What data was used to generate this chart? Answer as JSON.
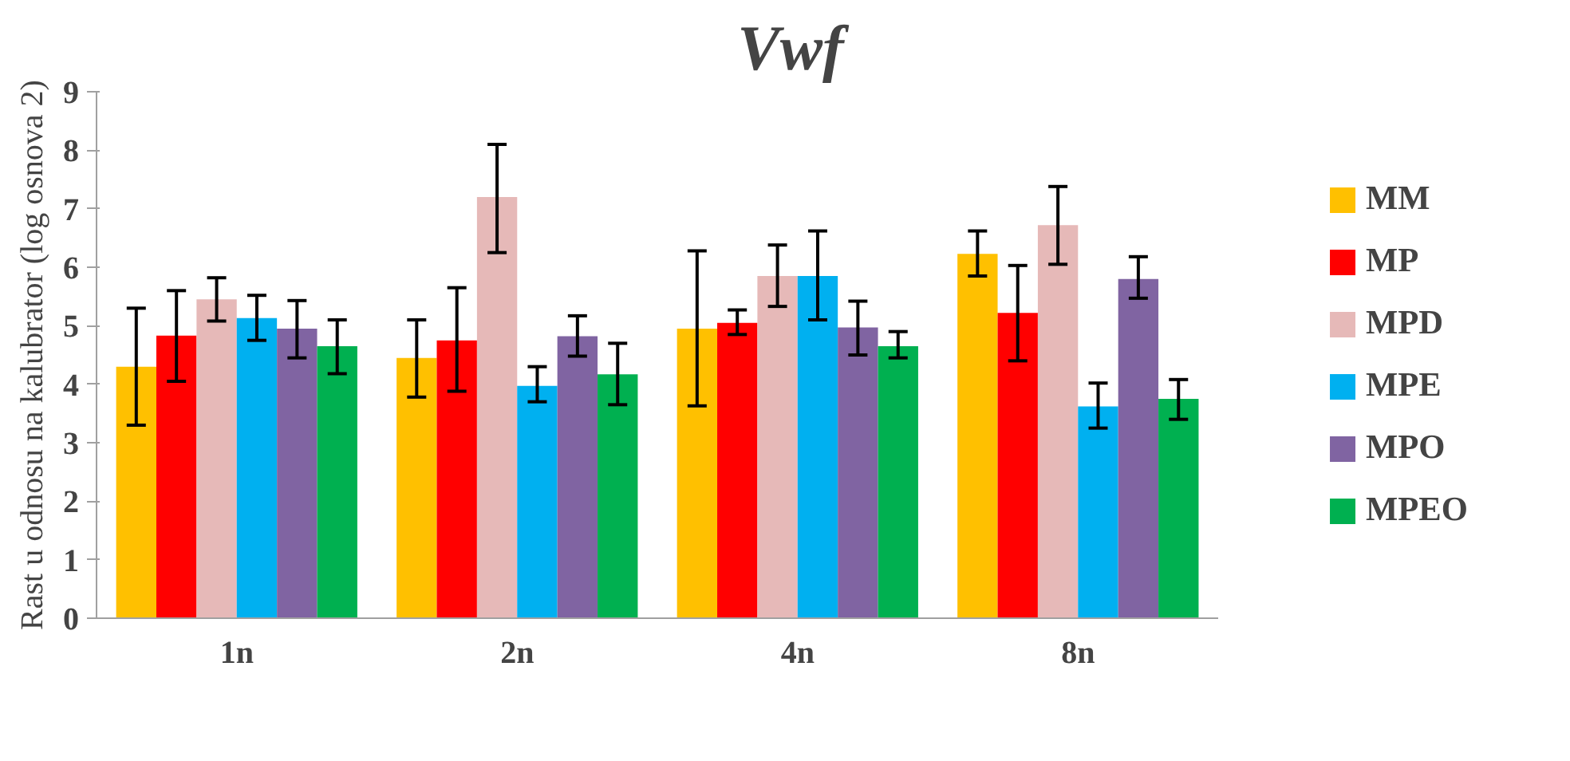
{
  "chart_data": {
    "type": "bar",
    "title": "Vwf",
    "ylabel": "Rast u odnosu na kalubrator (log osnova 2)",
    "categories": [
      "1n",
      "2n",
      "4n",
      "8n"
    ],
    "ylim": [
      0,
      9
    ],
    "yticks": [
      0,
      1,
      2,
      3,
      4,
      5,
      6,
      7,
      8,
      9
    ],
    "grid": false,
    "legend": "right",
    "series": [
      {
        "name": "MM",
        "color": "#ffc000",
        "values": [
          4.3,
          4.45,
          4.95,
          6.23
        ],
        "errors": [
          [
            3.3,
            5.3
          ],
          [
            3.78,
            5.1
          ],
          [
            3.63,
            6.28
          ],
          [
            5.85,
            6.62
          ]
        ]
      },
      {
        "name": "MP",
        "color": "#ff0000",
        "values": [
          4.83,
          4.75,
          5.05,
          5.22
        ],
        "errors": [
          [
            4.05,
            5.6
          ],
          [
            3.88,
            5.65
          ],
          [
            4.85,
            5.27
          ],
          [
            4.4,
            6.03
          ]
        ]
      },
      {
        "name": "MPD",
        "color": "#e6b9b8",
        "values": [
          5.45,
          7.2,
          5.85,
          6.72
        ],
        "errors": [
          [
            5.08,
            5.82
          ],
          [
            6.25,
            8.1
          ],
          [
            5.33,
            6.38
          ],
          [
            6.05,
            7.38
          ]
        ]
      },
      {
        "name": "MPE",
        "color": "#00b0f0",
        "values": [
          5.13,
          3.97,
          5.85,
          3.62
        ],
        "errors": [
          [
            4.75,
            5.52
          ],
          [
            3.7,
            4.3
          ],
          [
            5.1,
            6.62
          ],
          [
            3.25,
            4.02
          ]
        ]
      },
      {
        "name": "MPO",
        "color": "#8064a2",
        "values": [
          4.95,
          4.82,
          4.97,
          5.8
        ],
        "errors": [
          [
            4.45,
            5.43
          ],
          [
            4.48,
            5.17
          ],
          [
            4.5,
            5.42
          ],
          [
            5.47,
            6.18
          ]
        ]
      },
      {
        "name": "MPEO",
        "color": "#00b050",
        "values": [
          4.65,
          4.17,
          4.65,
          3.75
        ],
        "errors": [
          [
            4.18,
            5.1
          ],
          [
            3.65,
            4.7
          ],
          [
            4.45,
            4.9
          ],
          [
            3.4,
            4.08
          ]
        ]
      }
    ]
  }
}
